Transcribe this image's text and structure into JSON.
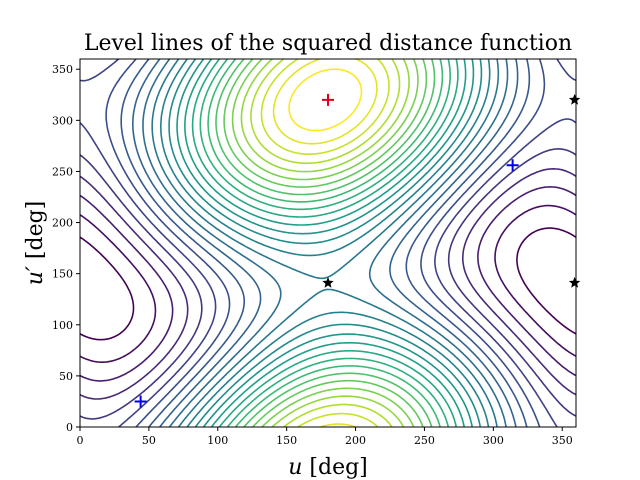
{
  "chart_data": {
    "type": "contour",
    "title": "Level lines of the squared distance function",
    "xlabel_var": "u",
    "ylabel_var": "u′",
    "xlabel_unit": "[deg]",
    "ylabel_unit": "[deg]",
    "xlim": [
      0,
      360
    ],
    "ylim": [
      0,
      360
    ],
    "xticks": [
      0,
      50,
      100,
      150,
      200,
      250,
      300,
      350
    ],
    "yticks": [
      0,
      50,
      100,
      150,
      200,
      250,
      300,
      350
    ],
    "grid": false,
    "colormap": "viridis",
    "levels": 26,
    "field": {
      "a": 2.0,
      "b": 1.4,
      "c": 0.62,
      "max_u": 178,
      "max_up": 320
    },
    "markers": [
      {
        "kind": "max",
        "symbol": "+",
        "color": "#e0001a",
        "x": 180,
        "y": 320
      },
      {
        "kind": "min",
        "symbol": "+",
        "color": "#0000ee",
        "x": 44,
        "y": 25
      },
      {
        "kind": "min",
        "symbol": "+",
        "color": "#0000ee",
        "x": 314,
        "y": 256
      },
      {
        "kind": "saddle",
        "symbol": "star",
        "color": "#000000",
        "x": 180,
        "y": 141
      },
      {
        "kind": "saddle",
        "symbol": "star",
        "color": "#000000",
        "x": 359,
        "y": 141
      },
      {
        "kind": "saddle",
        "symbol": "star",
        "color": "#000000",
        "x": 359,
        "y": 320
      }
    ]
  }
}
